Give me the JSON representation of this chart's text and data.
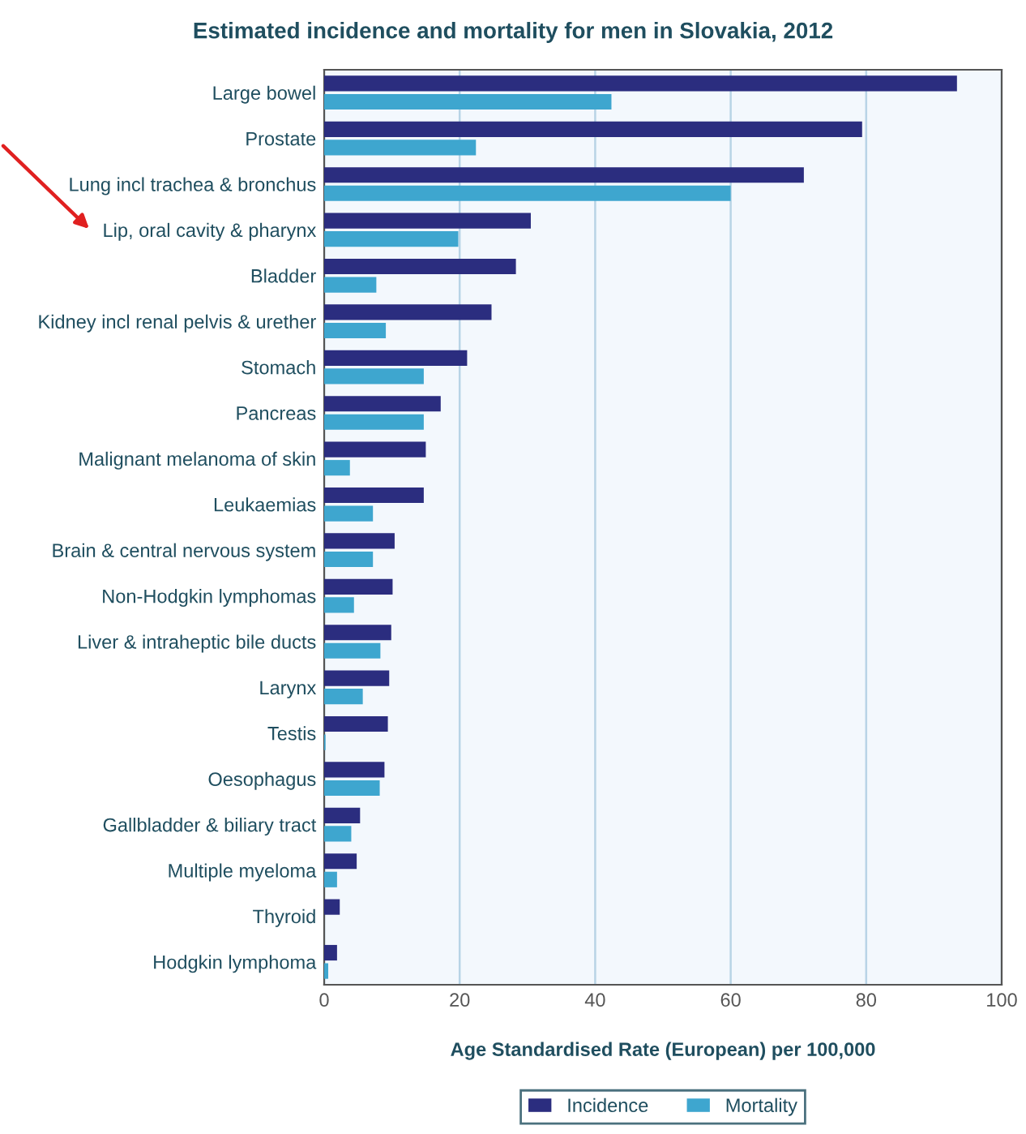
{
  "chart_data": {
    "type": "bar",
    "orientation": "horizontal",
    "title": "Estimated incidence and mortality for men in Slovakia, 2012",
    "xlabel": "Age Standardised Rate (European) per 100,000",
    "categories": [
      "Large bowel",
      "Prostate",
      "Lung incl trachea & bronchus",
      "Lip, oral cavity & pharynx",
      "Bladder",
      "Kidney incl renal pelvis & urether",
      "Stomach",
      "Pancreas",
      "Malignant melanoma of skin",
      "Leukaemias",
      "Brain & central nervous system",
      "Non-Hodgkin lymphomas",
      "Liver & intraheptic bile ducts",
      "Larynx",
      "Testis",
      "Oesophagus",
      "Gallbladder & biliary tract",
      "Multiple myeloma",
      "Thyroid",
      "Hodgkin lymphoma"
    ],
    "series": [
      {
        "name": "Incidence",
        "color": "#2b2d7f",
        "values": [
          93.4,
          79.4,
          70.8,
          30.5,
          28.3,
          24.7,
          21.1,
          17.2,
          15.0,
          14.7,
          10.4,
          10.1,
          9.9,
          9.6,
          9.4,
          8.9,
          5.3,
          4.8,
          2.3,
          1.9
        ]
      },
      {
        "name": "Mortality",
        "color": "#3ea6cf",
        "values": [
          42.4,
          22.4,
          60.0,
          19.8,
          7.7,
          9.1,
          14.7,
          14.7,
          3.8,
          7.2,
          7.2,
          4.4,
          8.3,
          5.7,
          0.2,
          8.2,
          4.0,
          1.9,
          null,
          0.6
        ]
      }
    ],
    "xlim": [
      0,
      100
    ],
    "xticks": [
      0,
      20,
      40,
      60,
      80,
      100
    ],
    "grid": "x",
    "legend": "bottom"
  }
}
